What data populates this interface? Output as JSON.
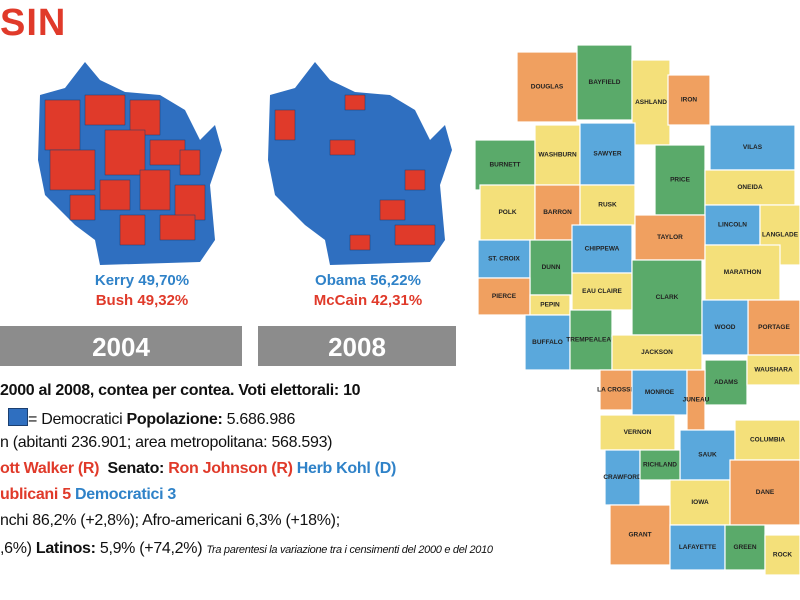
{
  "header": {
    "title": "SIN"
  },
  "results": [
    {
      "year": "2004",
      "dem": "Kerry 49,70%",
      "rep": "Bush 49,32%"
    },
    {
      "year": "2008",
      "dem": "Obama 56,22%",
      "rep": "McCain 42,31%"
    }
  ],
  "info": {
    "line1": "2000 al 2008, contea per contea. Voti elettorali: 10",
    "dem_legend": "= Democratici",
    "pop_label": "Popolazione:",
    "pop_value": "5.686.986",
    "line3": "n (abitanti 236.901; area metropolitana: 568.593)",
    "governor": "ott Walker (R)",
    "senate_label": "Senato:",
    "senator_r": "Ron Johnson (R)",
    "senator_d": "Herb Kohl (D)",
    "house_r": "ublicani 5",
    "house_d": "Democratici 3",
    "line6": "nchi 86,2% (+2,8%); Afro-americani 6,3% (+18%);",
    "line7a": ",6%)",
    "latinos_label": "Latinos:",
    "latinos_value": "5,9% (+74,2%)",
    "note": "Tra parentesi  la variazione tra i censimenti del 2000 e del 2010"
  },
  "map": {
    "counties": [
      "DOUGLAS",
      "BAYFIELD",
      "ASHLAND",
      "IRON",
      "VILAS",
      "BURNETT",
      "WASHBURN",
      "SAWYER",
      "PRICE",
      "ONEIDA",
      "POLK",
      "BARRON",
      "RUSK",
      "LINCOLN",
      "LANGLADE",
      "TAYLOR",
      "ST. CROIX",
      "DUNN",
      "CHIPPEWA",
      "MARATHON",
      "PIERCE",
      "PEPIN",
      "EAU CLAIRE",
      "CLARK",
      "BUFFALO",
      "TREMPEALEAU",
      "PORTAGE",
      "WOOD",
      "JACKSON",
      "ADAMS",
      "WAUSHARA",
      "LA CROSSE",
      "MONROE",
      "JUNEAU",
      "VERNON",
      "SAUK",
      "COLUMBIA",
      "CRAWFORD",
      "RICHLAND",
      "IOWA",
      "DANE",
      "GRANT",
      "LAFAYETTE",
      "GREEN",
      "ROCK"
    ]
  }
}
